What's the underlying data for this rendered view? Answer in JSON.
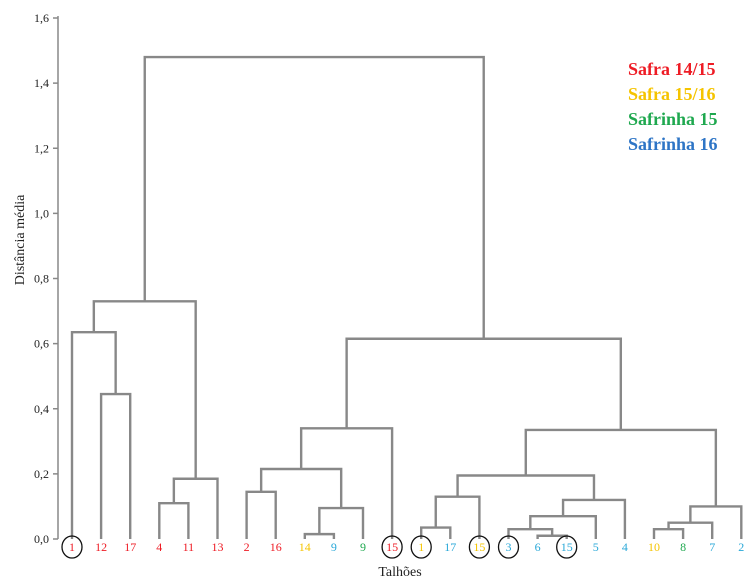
{
  "chart_data": {
    "type": "dendrogram",
    "title": "",
    "xlabel": "Talhões",
    "ylabel": "Distância média",
    "ylim": [
      0,
      1.6
    ],
    "yticks": [
      "0,0",
      "0,2",
      "0,4",
      "0,6",
      "0,8",
      "1,0",
      "1,2",
      "1,4",
      "1,6"
    ],
    "grid": false,
    "legend_position": "top-right",
    "colors": {
      "safra_14_15": "#ee1c25",
      "safra_15_16": "#f5c400",
      "safrinha_15": "#1fa84f",
      "safrinha_16": "#2e75c6",
      "leaf_blue": "#29a8d8",
      "link": "#888888"
    },
    "legend": [
      {
        "label": "Safra 14/15",
        "color": "#ee1c25"
      },
      {
        "label": "Safra 15/16",
        "color": "#f5c400"
      },
      {
        "label": "Safrinha 15",
        "color": "#1fa84f"
      },
      {
        "label": "Safrinha 16",
        "color": "#2e75c6"
      }
    ],
    "leaves": [
      {
        "label": "1",
        "color": "#ee1c25",
        "circled": true
      },
      {
        "label": "12",
        "color": "#ee1c25",
        "circled": false
      },
      {
        "label": "17",
        "color": "#ee1c25",
        "circled": false
      },
      {
        "label": "4",
        "color": "#ee1c25",
        "circled": false
      },
      {
        "label": "11",
        "color": "#ee1c25",
        "circled": false
      },
      {
        "label": "13",
        "color": "#ee1c25",
        "circled": false
      },
      {
        "label": "2",
        "color": "#ee1c25",
        "circled": false
      },
      {
        "label": "16",
        "color": "#ee1c25",
        "circled": false
      },
      {
        "label": "14",
        "color": "#f5c400",
        "circled": false
      },
      {
        "label": "9",
        "color": "#29a8d8",
        "circled": false
      },
      {
        "label": "9",
        "color": "#1fa84f",
        "circled": false
      },
      {
        "label": "15",
        "color": "#ee1c25",
        "circled": true
      },
      {
        "label": "1",
        "color": "#f5c400",
        "circled": true
      },
      {
        "label": "17",
        "color": "#29a8d8",
        "circled": false
      },
      {
        "label": "15",
        "color": "#f5c400",
        "circled": true
      },
      {
        "label": "3",
        "color": "#29a8d8",
        "circled": true
      },
      {
        "label": "6",
        "color": "#29a8d8",
        "circled": false
      },
      {
        "label": "15",
        "color": "#29a8d8",
        "circled": true
      },
      {
        "label": "5",
        "color": "#29a8d8",
        "circled": false
      },
      {
        "label": "4",
        "color": "#29a8d8",
        "circled": false
      },
      {
        "label": "10",
        "color": "#f5c400",
        "circled": false
      },
      {
        "label": "8",
        "color": "#1fa84f",
        "circled": false
      },
      {
        "label": "7",
        "color": "#29a8d8",
        "circled": false
      },
      {
        "label": "2",
        "color": "#29a8d8",
        "circled": false
      }
    ],
    "merges": [
      {
        "a": 1,
        "b": 2,
        "height": 0.445
      },
      {
        "a": 0,
        "b": 24,
        "height": 0.635
      },
      {
        "a": 3,
        "b": 4,
        "height": 0.11
      },
      {
        "a": 26,
        "b": 5,
        "height": 0.185
      },
      {
        "a": 25,
        "b": 27,
        "height": 0.73
      },
      {
        "a": 6,
        "b": 7,
        "height": 0.145
      },
      {
        "a": 8,
        "b": 9,
        "height": 0.015
      },
      {
        "a": 30,
        "b": 10,
        "height": 0.095
      },
      {
        "a": 29,
        "b": 31,
        "height": 0.215
      },
      {
        "a": 32,
        "b": 11,
        "height": 0.34
      },
      {
        "a": 12,
        "b": 13,
        "height": 0.035
      },
      {
        "a": 34,
        "b": 14,
        "height": 0.13
      },
      {
        "a": 16,
        "b": 17,
        "height": 0.01
      },
      {
        "a": 15,
        "b": 36,
        "height": 0.03
      },
      {
        "a": 37,
        "b": 18,
        "height": 0.07
      },
      {
        "a": 38,
        "b": 19,
        "height": 0.12
      },
      {
        "a": 35,
        "b": 39,
        "height": 0.195
      },
      {
        "a": 20,
        "b": 21,
        "height": 0.03
      },
      {
        "a": 41,
        "b": 22,
        "height": 0.05
      },
      {
        "a": 42,
        "b": 23,
        "height": 0.1
      },
      {
        "a": 40,
        "b": 43,
        "height": 0.335
      },
      {
        "a": 33,
        "b": 44,
        "height": 0.615
      },
      {
        "a": 28,
        "b": 45,
        "height": 1.48
      }
    ]
  }
}
